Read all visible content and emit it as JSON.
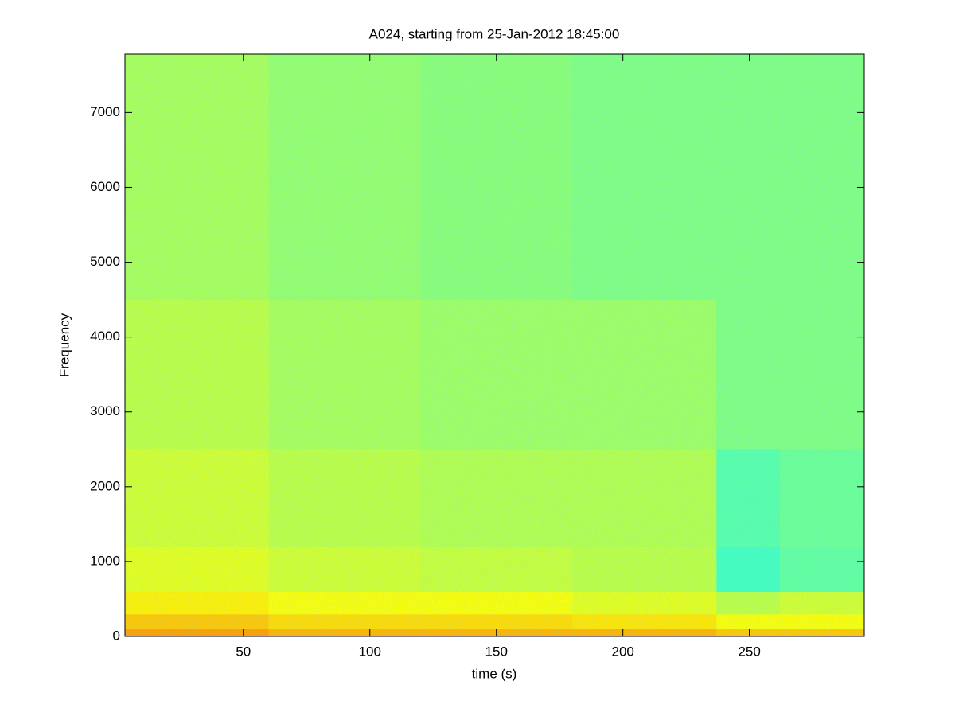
{
  "chart_data": {
    "type": "spectrogram",
    "title": "A024, starting from 25-Jan-2012 18:45:00",
    "xlabel": "time (s)",
    "ylabel": "Frequency",
    "xlim": [
      3.2,
      295.4
    ],
    "ylim": [
      0,
      7780
    ],
    "xticks": [
      50,
      100,
      150,
      200,
      250
    ],
    "yticks": [
      0,
      1000,
      2000,
      3000,
      4000,
      5000,
      6000,
      7000
    ],
    "colormap": "jet",
    "xbins": [
      3.2,
      60,
      120,
      180,
      237,
      262,
      295.4
    ],
    "ybins": [
      0,
      100,
      300,
      600,
      1200,
      2500,
      4500,
      7780
    ],
    "z": [
      [
        0.72,
        0.7,
        0.7,
        0.7,
        0.68,
        0.68
      ],
      [
        0.68,
        0.66,
        0.66,
        0.65,
        0.62,
        0.62
      ],
      [
        0.64,
        0.62,
        0.62,
        0.6,
        0.56,
        0.58
      ],
      [
        0.6,
        0.58,
        0.57,
        0.56,
        0.44,
        0.47
      ],
      [
        0.58,
        0.56,
        0.55,
        0.55,
        0.46,
        0.48
      ],
      [
        0.56,
        0.54,
        0.53,
        0.53,
        0.5,
        0.5
      ],
      [
        0.54,
        0.52,
        0.51,
        0.5,
        0.5,
        0.5
      ]
    ]
  }
}
